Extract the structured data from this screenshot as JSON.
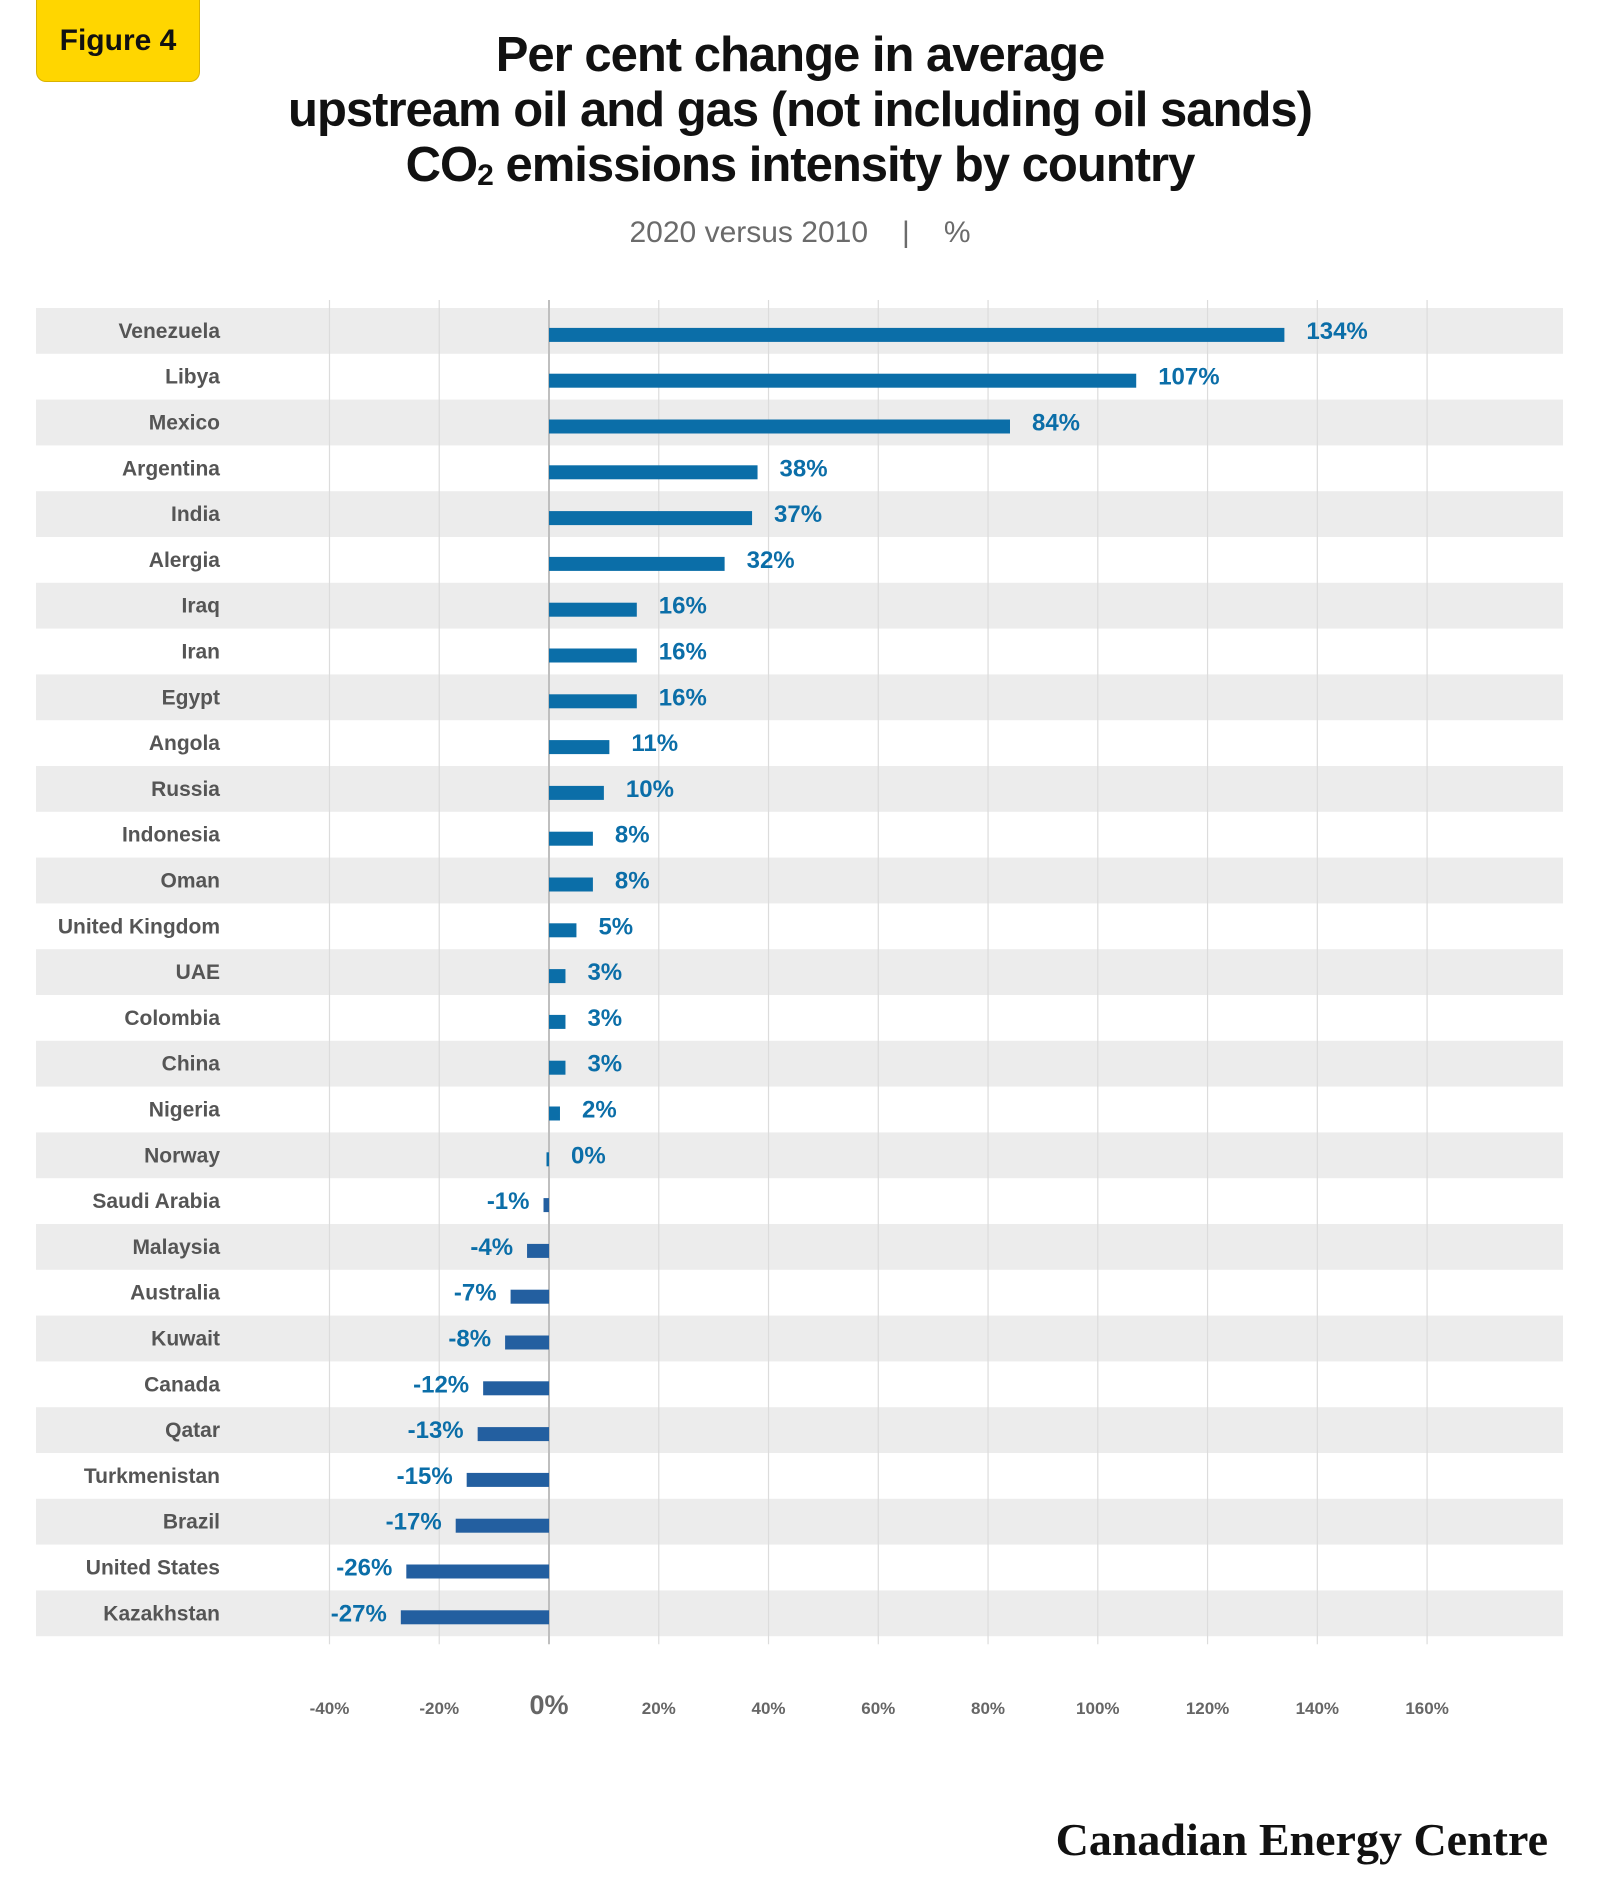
{
  "badge": "Figure 4",
  "title_lines": [
    "Per cent change in average",
    "upstream oil and gas (not including oil sands)"
  ],
  "title_line3_pre": "CO",
  "title_line3_sub": "2",
  "title_line3_post": " emissions intensity by country",
  "subtitle_left": "2020 versus 2010",
  "subtitle_sep": "|",
  "subtitle_right": "%",
  "footer": "Canadian Energy Centre",
  "chart_data": {
    "type": "bar",
    "orientation": "horizontal",
    "title": "Per cent change in average upstream oil and gas (not including oil sands) CO2 emissions intensity by country",
    "subtitle": "2020 versus 2010 | %",
    "categories": [
      "Venezuela",
      "Libya",
      "Mexico",
      "Argentina",
      "India",
      "Alergia",
      "Iraq",
      "Iran",
      "Egypt",
      "Angola",
      "Russia",
      "Indonesia",
      "Oman",
      "United Kingdom",
      "UAE",
      "Colombia",
      "China",
      "Nigeria",
      "Norway",
      "Saudi Arabia",
      "Malaysia",
      "Australia",
      "Kuwait",
      "Canada",
      "Qatar",
      "Turkmenistan",
      "Brazil",
      "United States",
      "Kazakhstan"
    ],
    "values": [
      134,
      107,
      84,
      38,
      37,
      32,
      16,
      16,
      16,
      11,
      10,
      8,
      8,
      5,
      3,
      3,
      3,
      2,
      0,
      -1,
      -4,
      -7,
      -8,
      -12,
      -13,
      -15,
      -17,
      -26,
      -27
    ],
    "value_labels": [
      "134%",
      "107%",
      "84%",
      "38%",
      "37%",
      "32%",
      "16%",
      "16%",
      "16%",
      "11%",
      "10%",
      "8%",
      "8%",
      "5%",
      "3%",
      "3%",
      "3%",
      "2%",
      "0%",
      "-1%",
      "-4%",
      "-7%",
      "-8%",
      "-12%",
      "-13%",
      "-15%",
      "-17%",
      "-26%",
      "-27%"
    ],
    "xlim": [
      -40,
      160
    ],
    "x_ticks": [
      -40,
      -20,
      0,
      20,
      40,
      60,
      80,
      100,
      120,
      140,
      160
    ],
    "x_tick_labels": [
      "-40%",
      "-20%",
      "0%",
      "20%",
      "40%",
      "60%",
      "80%",
      "100%",
      "120%",
      "140%",
      "160%"
    ],
    "grid": true,
    "legend": "none",
    "colors": {
      "positive_bar": "#0b6ea8",
      "negative_bar": "#235fa0",
      "label_text": "#0b6ea8",
      "category_text": "#555555",
      "tick_text": "#666666",
      "row_band": "#ececec",
      "gridline": "#dcdcdc"
    }
  }
}
